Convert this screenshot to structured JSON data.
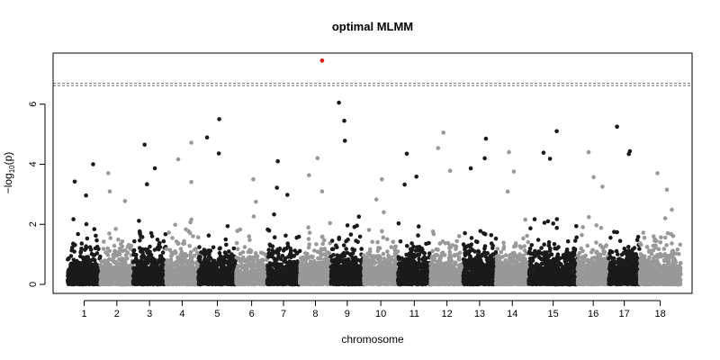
{
  "chart_data": {
    "type": "scatter",
    "title": "optimal MLMM",
    "xlabel": "chromosome",
    "ylabel_main": "−log",
    "ylabel_sub": "10",
    "ylabel_tail": "(p)",
    "ylim": [
      -0.3,
      7.7
    ],
    "yticks": [
      0,
      2,
      4,
      6
    ],
    "threshold_lines": [
      6.62,
      6.7
    ],
    "colors": {
      "odd": "#1a1a1a",
      "even": "#999999",
      "highlight": "#e0201a",
      "threshold": "#555555"
    },
    "chromosomes": [
      {
        "label": "1",
        "span": [
          0.0,
          1.0
        ],
        "maxp": 4.0
      },
      {
        "label": "2",
        "span": [
          1.0,
          2.0
        ],
        "maxp": 3.7
      },
      {
        "label": "3",
        "span": [
          2.0,
          3.0
        ],
        "maxp": 4.65
      },
      {
        "label": "4",
        "span": [
          3.0,
          4.0
        ],
        "maxp": 4.72
      },
      {
        "label": "5",
        "span": [
          4.0,
          5.15
        ],
        "maxp": 5.5
      },
      {
        "label": "6",
        "span": [
          5.15,
          6.1
        ],
        "maxp": 3.5
      },
      {
        "label": "7",
        "span": [
          6.1,
          7.1
        ],
        "maxp": 4.1
      },
      {
        "label": "8",
        "span": [
          7.1,
          8.05
        ],
        "maxp": 4.2
      },
      {
        "label": "9",
        "span": [
          8.05,
          9.05
        ],
        "maxp": 6.05
      },
      {
        "label": "10",
        "span": [
          9.05,
          10.1
        ],
        "maxp": 3.5
      },
      {
        "label": "11",
        "span": [
          10.1,
          11.1
        ],
        "maxp": 4.35
      },
      {
        "label": "12",
        "span": [
          11.1,
          12.1
        ],
        "maxp": 5.05
      },
      {
        "label": "13",
        "span": [
          12.1,
          13.1
        ],
        "maxp": 4.85
      },
      {
        "label": "14",
        "span": [
          13.1,
          14.1
        ],
        "maxp": 4.4
      },
      {
        "label": "15",
        "span": [
          14.1,
          15.6
        ],
        "maxp": 5.1
      },
      {
        "label": "16",
        "span": [
          15.6,
          16.55
        ],
        "maxp": 4.4
      },
      {
        "label": "17",
        "span": [
          16.55,
          17.5
        ],
        "maxp": 5.25
      },
      {
        "label": "18",
        "span": [
          17.5,
          18.75
        ],
        "maxp": 3.7
      }
    ],
    "highlight_points": [
      {
        "x": 7.78,
        "y": 7.45
      }
    ]
  }
}
